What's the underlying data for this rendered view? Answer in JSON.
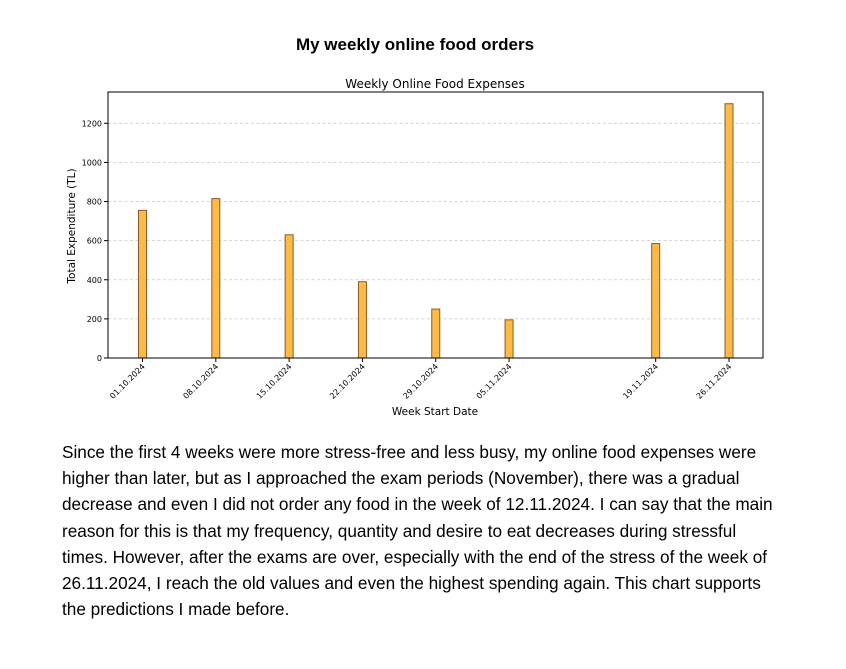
{
  "heading": "My weekly online food orders",
  "paragraph": "Since the first 4 weeks were more stress-free and less busy, my online food expenses were higher than later, but as I approached the exam periods (November), there was a gradual decrease and even I did not order any food in the week of 12.11.2024. I can say that the main reason for this is that my frequency, quantity and desire to eat decreases during stressful times. However, after the exams are over, especially with the end of the stress of the week of 26.11.2024, I reach the old values and even the highest spending again. This chart supports the predictions I made before.",
  "chart_data": {
    "type": "bar",
    "title": "Weekly Online Food Expenses",
    "xlabel": "Week Start Date",
    "ylabel": "Total Expenditure (TL)",
    "x_axis": "date",
    "categories": [
      "01.10.2024",
      "08.10.2024",
      "15.10.2024",
      "22.10.2024",
      "29.10.2024",
      "05.11.2024",
      "19.11.2024",
      "26.11.2024"
    ],
    "values": [
      755,
      815,
      630,
      390,
      250,
      195,
      585,
      1300
    ],
    "ylim": [
      0,
      1360
    ],
    "yticks": [
      0,
      200,
      400,
      600,
      800,
      1000,
      1200
    ],
    "grid": "horizontal dashed",
    "bar_color": "#FDBA47",
    "bar_edge_color": "#8B5A2B"
  }
}
